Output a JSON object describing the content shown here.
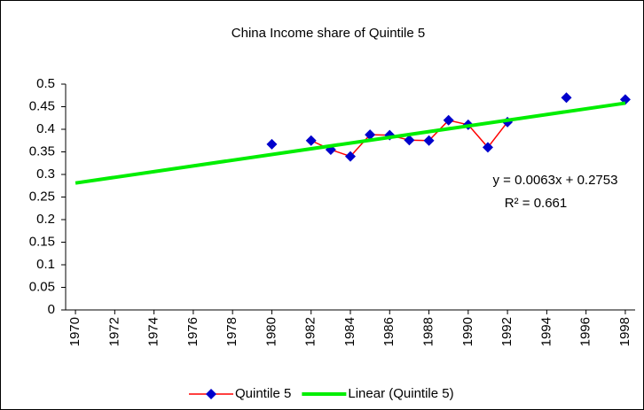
{
  "chart_data": {
    "type": "line",
    "title": "China Income share of Quintile 5",
    "series": [
      {
        "name": "Quintile 5",
        "color": "#ff0000",
        "marker_color": "#0000cc",
        "x": [
          1980,
          1981,
          1982,
          1983,
          1984,
          1985,
          1986,
          1987,
          1988,
          1989,
          1990,
          1991,
          1992,
          1993,
          1995,
          1996,
          1998
        ],
        "values": [
          0.367,
          null,
          0.375,
          0.355,
          0.34,
          0.388,
          0.387,
          0.376,
          0.375,
          0.42,
          0.41,
          0.36,
          0.416,
          null,
          0.47,
          null,
          0.466
        ]
      },
      {
        "name": "Linear (Quintile 5)",
        "color": "#00ee00",
        "x": [
          1970,
          1998
        ],
        "values": [
          0.281,
          0.458
        ]
      }
    ],
    "annotations": [
      "y = 0.0063x + 0.2753",
      "R² = 0.661"
    ],
    "xlim": [
      1969.5,
      1998.5
    ],
    "xticks": [
      1970,
      1972,
      1974,
      1976,
      1978,
      1980,
      1982,
      1984,
      1986,
      1988,
      1990,
      1992,
      1994,
      1996,
      1998
    ],
    "ylim": [
      0,
      0.5
    ],
    "yticks": [
      0,
      0.05,
      0.1,
      0.15,
      0.2,
      0.25,
      0.3,
      0.35,
      0.4,
      0.45,
      0.5
    ],
    "grid": false,
    "legend": "bottom"
  }
}
